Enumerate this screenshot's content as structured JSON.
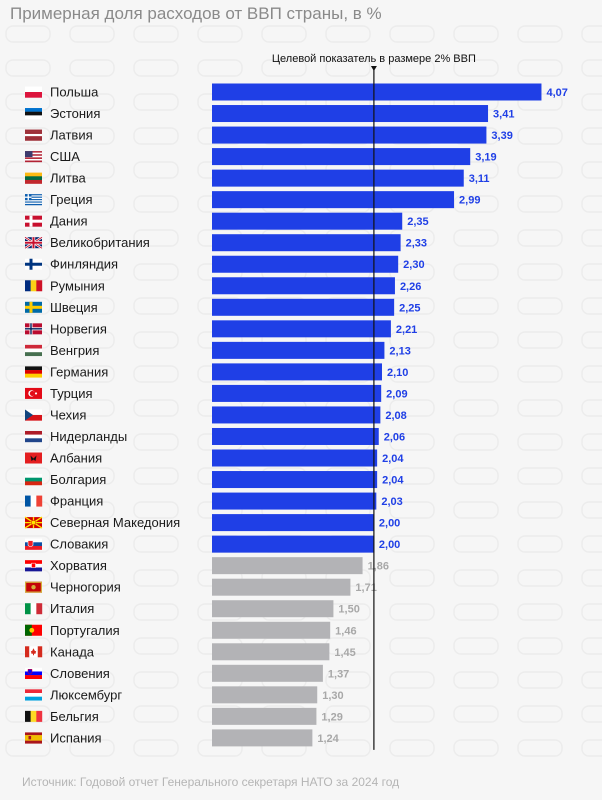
{
  "title": "Примерная доля расходов от ВВП страны, в %",
  "source": "Источник: Годовой отчет Генерального секретаря НАТО за 2024 год",
  "colors": {
    "above_target": "#1f3fe6",
    "below_target": "#b3b3b6",
    "label_above": "#1f3fe6",
    "label_below": "#a8a8a8"
  },
  "chart_data": {
    "type": "bar",
    "orientation": "horizontal",
    "title": "Примерная доля расходов от ВВП страны, в %",
    "reference_line": {
      "value": 2.0,
      "label": "Целевой показатель в размере 2% ВВП"
    },
    "categories": [
      "Польша",
      "Эстония",
      "Латвия",
      "США",
      "Литва",
      "Греция",
      "Дания",
      "Великобритания",
      "Финляндия",
      "Румыния",
      "Швеция",
      "Норвегия",
      "Венгрия",
      "Германия",
      "Турция",
      "Чехия",
      "Нидерланды",
      "Албания",
      "Болгария",
      "Франция",
      "Северная Македония",
      "Словакия",
      "Хорватия",
      "Черногория",
      "Италия",
      "Португалия",
      "Канада",
      "Словения",
      "Люксембург",
      "Бельгия",
      "Испания"
    ],
    "values": [
      4.07,
      3.41,
      3.39,
      3.19,
      3.11,
      2.99,
      2.35,
      2.33,
      2.3,
      2.26,
      2.25,
      2.21,
      2.13,
      2.1,
      2.09,
      2.08,
      2.06,
      2.04,
      2.04,
      2.03,
      2.0,
      2.0,
      1.86,
      1.71,
      1.5,
      1.46,
      1.45,
      1.37,
      1.3,
      1.29,
      1.24
    ],
    "value_labels": [
      "4,07",
      "3,41",
      "3,39",
      "3,19",
      "3,11",
      "2,99",
      "2,35",
      "2,33",
      "2,30",
      "2,26",
      "2,25",
      "2,21",
      "2,13",
      "2,10",
      "2,09",
      "2,08",
      "2,06",
      "2,04",
      "2,04",
      "2,03",
      "2,00",
      "2,00",
      "1,86",
      "1,71",
      "1,50",
      "1,46",
      "1,45",
      "1,37",
      "1,30",
      "1,29",
      "1,24"
    ],
    "flags": [
      "pl",
      "ee",
      "lv",
      "us",
      "lt",
      "gr",
      "dk",
      "gb",
      "fi",
      "ro",
      "se",
      "no",
      "hu",
      "de",
      "tr",
      "cz",
      "nl",
      "al",
      "bg",
      "fr",
      "mk",
      "sk",
      "hr",
      "me",
      "it",
      "pt",
      "ca",
      "si",
      "lu",
      "be",
      "es"
    ]
  }
}
